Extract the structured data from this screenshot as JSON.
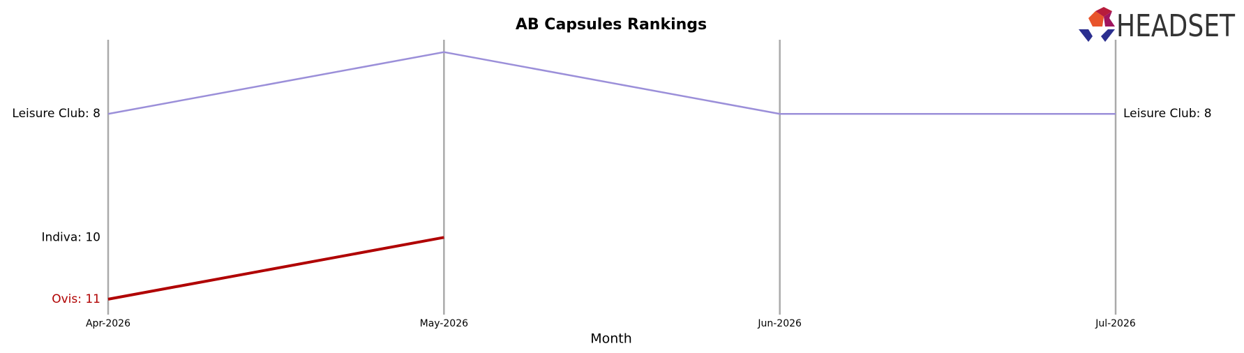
{
  "logo_text": "HEADSET",
  "chart_data": {
    "type": "bump",
    "title": "AB Capsules Rankings",
    "x_label": "Month",
    "categories": [
      "Apr-2026",
      "May-2026",
      "Jun-2026",
      "Jul-2026"
    ],
    "ylim": [
      11.25,
      6.8
    ],
    "series": [
      {
        "name": "Leisure Club",
        "color": "#9b8fd9",
        "label_color": "#000000",
        "values": [
          8,
          7,
          8,
          8
        ],
        "start_label": "Leisure Club: 8",
        "end_label": "Leisure Club: 8"
      },
      {
        "name": "Indiva",
        "color": "#808080",
        "label_color": "#000000",
        "values": [
          10,
          null,
          null,
          null
        ],
        "start_label": "Indiva: 10"
      },
      {
        "name": "Ovis",
        "color": "#b00000",
        "label_color": "#b00000",
        "values": [
          11,
          10,
          null,
          null
        ],
        "start_label": "Ovis: 11"
      }
    ]
  }
}
